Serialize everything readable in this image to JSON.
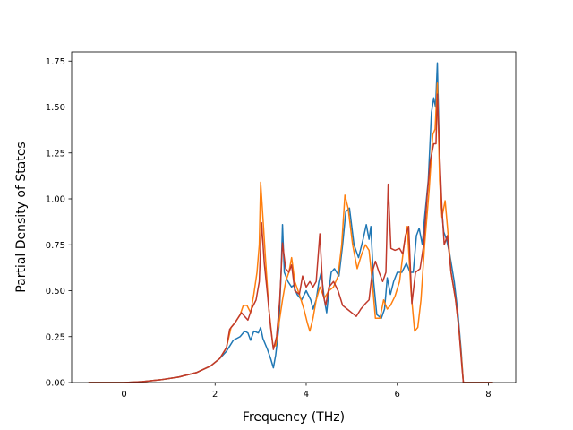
{
  "chart_data": {
    "type": "line",
    "title": "",
    "xlabel": "Frequency (THz)",
    "ylabel": "Partial Density of States",
    "xlim": [
      -1.15,
      8.6
    ],
    "ylim": [
      0.0,
      1.8
    ],
    "xticks": [
      0,
      2,
      4,
      6,
      8
    ],
    "xtick_labels": [
      "0",
      "2",
      "4",
      "6",
      "8"
    ],
    "yticks": [
      0.0,
      0.25,
      0.5,
      0.75,
      1.0,
      1.25,
      1.5,
      1.75
    ],
    "ytick_labels": [
      "0.00",
      "0.25",
      "0.50",
      "0.75",
      "1.00",
      "1.25",
      "1.50",
      "1.75"
    ],
    "grid": false,
    "legend": "none",
    "series": [
      {
        "color": "#1f77b4",
        "points": [
          [
            -0.78,
            0
          ],
          [
            0,
            0
          ],
          [
            0.4,
            0.005
          ],
          [
            0.8,
            0.015
          ],
          [
            1.2,
            0.03
          ],
          [
            1.6,
            0.055
          ],
          [
            1.9,
            0.09
          ],
          [
            2.1,
            0.13
          ],
          [
            2.25,
            0.17
          ],
          [
            2.4,
            0.23
          ],
          [
            2.55,
            0.25
          ],
          [
            2.65,
            0.28
          ],
          [
            2.72,
            0.27
          ],
          [
            2.78,
            0.23
          ],
          [
            2.85,
            0.28
          ],
          [
            2.95,
            0.27
          ],
          [
            3.0,
            0.3
          ],
          [
            3.05,
            0.24
          ],
          [
            3.15,
            0.18
          ],
          [
            3.22,
            0.13
          ],
          [
            3.28,
            0.08
          ],
          [
            3.33,
            0.15
          ],
          [
            3.4,
            0.3
          ],
          [
            3.45,
            0.6
          ],
          [
            3.48,
            0.86
          ],
          [
            3.52,
            0.6
          ],
          [
            3.6,
            0.55
          ],
          [
            3.68,
            0.52
          ],
          [
            3.72,
            0.53
          ],
          [
            3.8,
            0.48
          ],
          [
            3.9,
            0.45
          ],
          [
            4.0,
            0.5
          ],
          [
            4.1,
            0.45
          ],
          [
            4.15,
            0.4
          ],
          [
            4.22,
            0.45
          ],
          [
            4.28,
            0.55
          ],
          [
            4.33,
            0.6
          ],
          [
            4.4,
            0.45
          ],
          [
            4.45,
            0.38
          ],
          [
            4.5,
            0.5
          ],
          [
            4.55,
            0.6
          ],
          [
            4.62,
            0.62
          ],
          [
            4.72,
            0.58
          ],
          [
            4.8,
            0.75
          ],
          [
            4.87,
            0.93
          ],
          [
            4.95,
            0.95
          ],
          [
            5.05,
            0.75
          ],
          [
            5.15,
            0.68
          ],
          [
            5.25,
            0.78
          ],
          [
            5.32,
            0.86
          ],
          [
            5.38,
            0.78
          ],
          [
            5.42,
            0.85
          ],
          [
            5.48,
            0.55
          ],
          [
            5.55,
            0.37
          ],
          [
            5.65,
            0.35
          ],
          [
            5.72,
            0.4
          ],
          [
            5.78,
            0.57
          ],
          [
            5.85,
            0.48
          ],
          [
            5.92,
            0.55
          ],
          [
            6.0,
            0.6
          ],
          [
            6.1,
            0.6
          ],
          [
            6.2,
            0.65
          ],
          [
            6.28,
            0.6
          ],
          [
            6.35,
            0.6
          ],
          [
            6.42,
            0.8
          ],
          [
            6.48,
            0.84
          ],
          [
            6.55,
            0.75
          ],
          [
            6.6,
            0.9
          ],
          [
            6.68,
            1.1
          ],
          [
            6.75,
            1.47
          ],
          [
            6.8,
            1.55
          ],
          [
            6.84,
            1.5
          ],
          [
            6.88,
            1.74
          ],
          [
            6.92,
            1.3
          ],
          [
            6.97,
            0.95
          ],
          [
            7.02,
            0.82
          ],
          [
            7.08,
            0.78
          ],
          [
            7.15,
            0.7
          ],
          [
            7.25,
            0.55
          ],
          [
            7.33,
            0.38
          ],
          [
            7.4,
            0.18
          ],
          [
            7.45,
            0
          ],
          [
            8.1,
            0
          ]
        ]
      },
      {
        "color": "#ff7f0e",
        "points": [
          [
            -0.78,
            0
          ],
          [
            0,
            0
          ],
          [
            0.4,
            0.005
          ],
          [
            0.8,
            0.015
          ],
          [
            1.2,
            0.03
          ],
          [
            1.6,
            0.055
          ],
          [
            1.9,
            0.09
          ],
          [
            2.1,
            0.13
          ],
          [
            2.25,
            0.19
          ],
          [
            2.35,
            0.3
          ],
          [
            2.45,
            0.33
          ],
          [
            2.55,
            0.37
          ],
          [
            2.62,
            0.42
          ],
          [
            2.7,
            0.42
          ],
          [
            2.78,
            0.38
          ],
          [
            2.85,
            0.48
          ],
          [
            2.92,
            0.6
          ],
          [
            2.97,
            0.75
          ],
          [
            3.0,
            1.09
          ],
          [
            3.05,
            0.9
          ],
          [
            3.1,
            0.7
          ],
          [
            3.18,
            0.4
          ],
          [
            3.27,
            0.2
          ],
          [
            3.33,
            0.2
          ],
          [
            3.42,
            0.35
          ],
          [
            3.48,
            0.45
          ],
          [
            3.55,
            0.55
          ],
          [
            3.62,
            0.6
          ],
          [
            3.68,
            0.68
          ],
          [
            3.75,
            0.55
          ],
          [
            3.85,
            0.48
          ],
          [
            3.95,
            0.4
          ],
          [
            4.03,
            0.32
          ],
          [
            4.08,
            0.28
          ],
          [
            4.15,
            0.35
          ],
          [
            4.22,
            0.45
          ],
          [
            4.3,
            0.52
          ],
          [
            4.4,
            0.46
          ],
          [
            4.5,
            0.5
          ],
          [
            4.6,
            0.52
          ],
          [
            4.7,
            0.58
          ],
          [
            4.78,
            0.75
          ],
          [
            4.85,
            1.02
          ],
          [
            4.92,
            0.95
          ],
          [
            5.02,
            0.75
          ],
          [
            5.12,
            0.62
          ],
          [
            5.22,
            0.7
          ],
          [
            5.3,
            0.75
          ],
          [
            5.38,
            0.72
          ],
          [
            5.45,
            0.55
          ],
          [
            5.52,
            0.35
          ],
          [
            5.62,
            0.35
          ],
          [
            5.7,
            0.45
          ],
          [
            5.78,
            0.4
          ],
          [
            5.85,
            0.42
          ],
          [
            5.95,
            0.47
          ],
          [
            6.05,
            0.55
          ],
          [
            6.15,
            0.75
          ],
          [
            6.22,
            0.85
          ],
          [
            6.3,
            0.5
          ],
          [
            6.38,
            0.28
          ],
          [
            6.45,
            0.3
          ],
          [
            6.52,
            0.45
          ],
          [
            6.6,
            0.75
          ],
          [
            6.7,
            1.05
          ],
          [
            6.78,
            1.35
          ],
          [
            6.83,
            1.38
          ],
          [
            6.88,
            1.63
          ],
          [
            6.93,
            1.1
          ],
          [
            6.98,
            0.9
          ],
          [
            7.05,
            0.99
          ],
          [
            7.1,
            0.85
          ],
          [
            7.18,
            0.6
          ],
          [
            7.28,
            0.45
          ],
          [
            7.35,
            0.3
          ],
          [
            7.42,
            0.1
          ],
          [
            7.45,
            0
          ],
          [
            8.1,
            0
          ]
        ]
      },
      {
        "color": "#c0392b",
        "points": [
          [
            -0.78,
            0
          ],
          [
            0,
            0
          ],
          [
            0.4,
            0.005
          ],
          [
            0.8,
            0.015
          ],
          [
            1.2,
            0.03
          ],
          [
            1.6,
            0.055
          ],
          [
            1.9,
            0.09
          ],
          [
            2.1,
            0.13
          ],
          [
            2.25,
            0.19
          ],
          [
            2.32,
            0.29
          ],
          [
            2.42,
            0.32
          ],
          [
            2.5,
            0.35
          ],
          [
            2.58,
            0.38
          ],
          [
            2.65,
            0.36
          ],
          [
            2.72,
            0.34
          ],
          [
            2.8,
            0.4
          ],
          [
            2.9,
            0.45
          ],
          [
            2.97,
            0.55
          ],
          [
            3.02,
            0.87
          ],
          [
            3.08,
            0.65
          ],
          [
            3.15,
            0.48
          ],
          [
            3.22,
            0.3
          ],
          [
            3.28,
            0.18
          ],
          [
            3.35,
            0.25
          ],
          [
            3.42,
            0.45
          ],
          [
            3.48,
            0.76
          ],
          [
            3.55,
            0.62
          ],
          [
            3.62,
            0.6
          ],
          [
            3.68,
            0.64
          ],
          [
            3.75,
            0.5
          ],
          [
            3.85,
            0.48
          ],
          [
            3.92,
            0.58
          ],
          [
            4.0,
            0.52
          ],
          [
            4.08,
            0.55
          ],
          [
            4.15,
            0.52
          ],
          [
            4.22,
            0.55
          ],
          [
            4.3,
            0.81
          ],
          [
            4.37,
            0.48
          ],
          [
            4.43,
            0.42
          ],
          [
            4.5,
            0.52
          ],
          [
            4.6,
            0.55
          ],
          [
            4.7,
            0.5
          ],
          [
            4.8,
            0.42
          ],
          [
            4.9,
            0.4
          ],
          [
            5.0,
            0.38
          ],
          [
            5.1,
            0.36
          ],
          [
            5.2,
            0.4
          ],
          [
            5.3,
            0.43
          ],
          [
            5.38,
            0.45
          ],
          [
            5.45,
            0.6
          ],
          [
            5.52,
            0.66
          ],
          [
            5.6,
            0.6
          ],
          [
            5.68,
            0.55
          ],
          [
            5.75,
            0.6
          ],
          [
            5.8,
            1.08
          ],
          [
            5.86,
            0.73
          ],
          [
            5.95,
            0.72
          ],
          [
            6.05,
            0.73
          ],
          [
            6.12,
            0.7
          ],
          [
            6.18,
            0.8
          ],
          [
            6.25,
            0.85
          ],
          [
            6.32,
            0.43
          ],
          [
            6.4,
            0.6
          ],
          [
            6.5,
            0.62
          ],
          [
            6.58,
            0.75
          ],
          [
            6.65,
            1.0
          ],
          [
            6.72,
            1.2
          ],
          [
            6.8,
            1.3
          ],
          [
            6.85,
            1.3
          ],
          [
            6.88,
            1.57
          ],
          [
            6.93,
            1.25
          ],
          [
            6.98,
            0.95
          ],
          [
            7.03,
            0.75
          ],
          [
            7.1,
            0.8
          ],
          [
            7.18,
            0.6
          ],
          [
            7.28,
            0.45
          ],
          [
            7.35,
            0.3
          ],
          [
            7.42,
            0.08
          ],
          [
            7.45,
            0
          ],
          [
            8.1,
            0
          ]
        ]
      }
    ]
  }
}
